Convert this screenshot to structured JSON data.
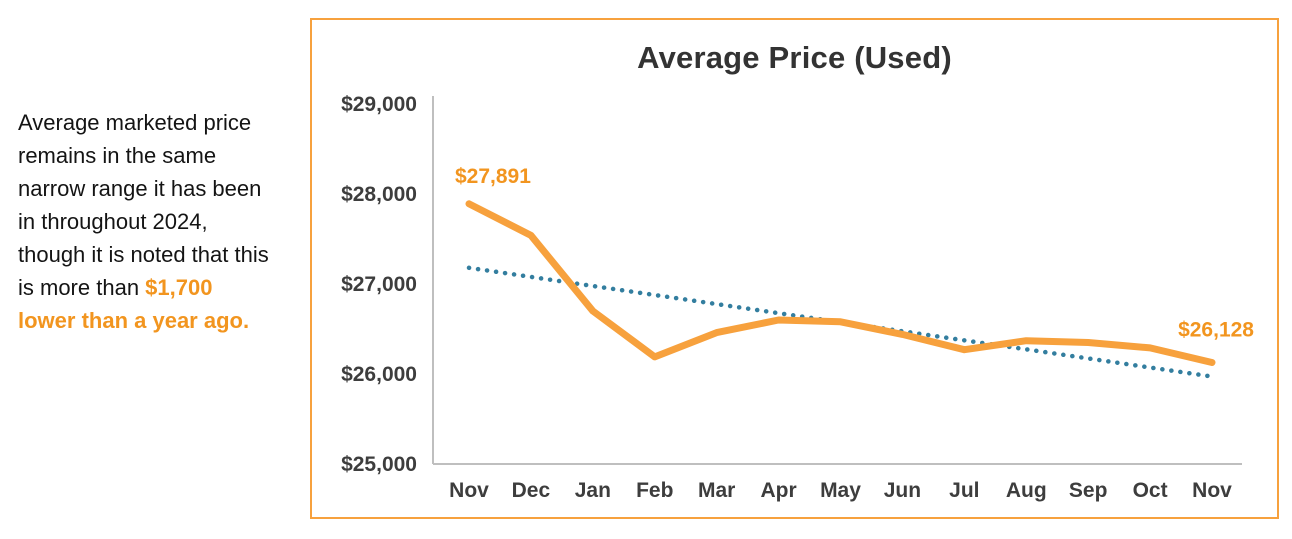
{
  "note": {
    "text_before": "Average marketed price remains in the same narrow range it has been in throughout 2024, though it is noted that this is more than ",
    "highlight": "$1,700 lower than a year ago."
  },
  "chart_data": {
    "type": "line",
    "title": "Average Price (Used)",
    "categories": [
      "Nov",
      "Dec",
      "Jan",
      "Feb",
      "Mar",
      "Apr",
      "May",
      "Jun",
      "Jul",
      "Aug",
      "Sep",
      "Oct",
      "Nov"
    ],
    "series": [
      {
        "name": "Average price (used)",
        "style": "solid",
        "color": "#F7A13D",
        "values": [
          27891,
          27540,
          26700,
          26190,
          26460,
          26600,
          26580,
          26440,
          26270,
          26370,
          26350,
          26290,
          26128
        ]
      },
      {
        "name": "Trend line",
        "style": "dotted",
        "color": "#337E9F",
        "values": [
          27180,
          27079,
          26978,
          26878,
          26777,
          26676,
          26576,
          26475,
          26374,
          26274,
          26173,
          26072,
          25972
        ]
      }
    ],
    "y_ticks": [
      {
        "label": "$29,000",
        "value": 29000
      },
      {
        "label": "$28,000",
        "value": 28000
      },
      {
        "label": "$27,000",
        "value": 27000
      },
      {
        "label": "$26,000",
        "value": 26000
      },
      {
        "label": "$25,000",
        "value": 25000
      }
    ],
    "ylim": [
      25000,
      29000
    ],
    "grid": false,
    "legend_position": "none",
    "point_labels": {
      "first": "$27,891",
      "last": "$26,128"
    }
  },
  "colors": {
    "accent_orange": "#F7A13D",
    "label_orange": "#F2951F",
    "trend_blue": "#337E9F",
    "axis_line": "#BFBFBF",
    "tick_text": "#3D3D3D",
    "title_text": "#333333",
    "note_text": "#141414",
    "card_border": "#F7A13D",
    "background": "#FFFFFF"
  }
}
